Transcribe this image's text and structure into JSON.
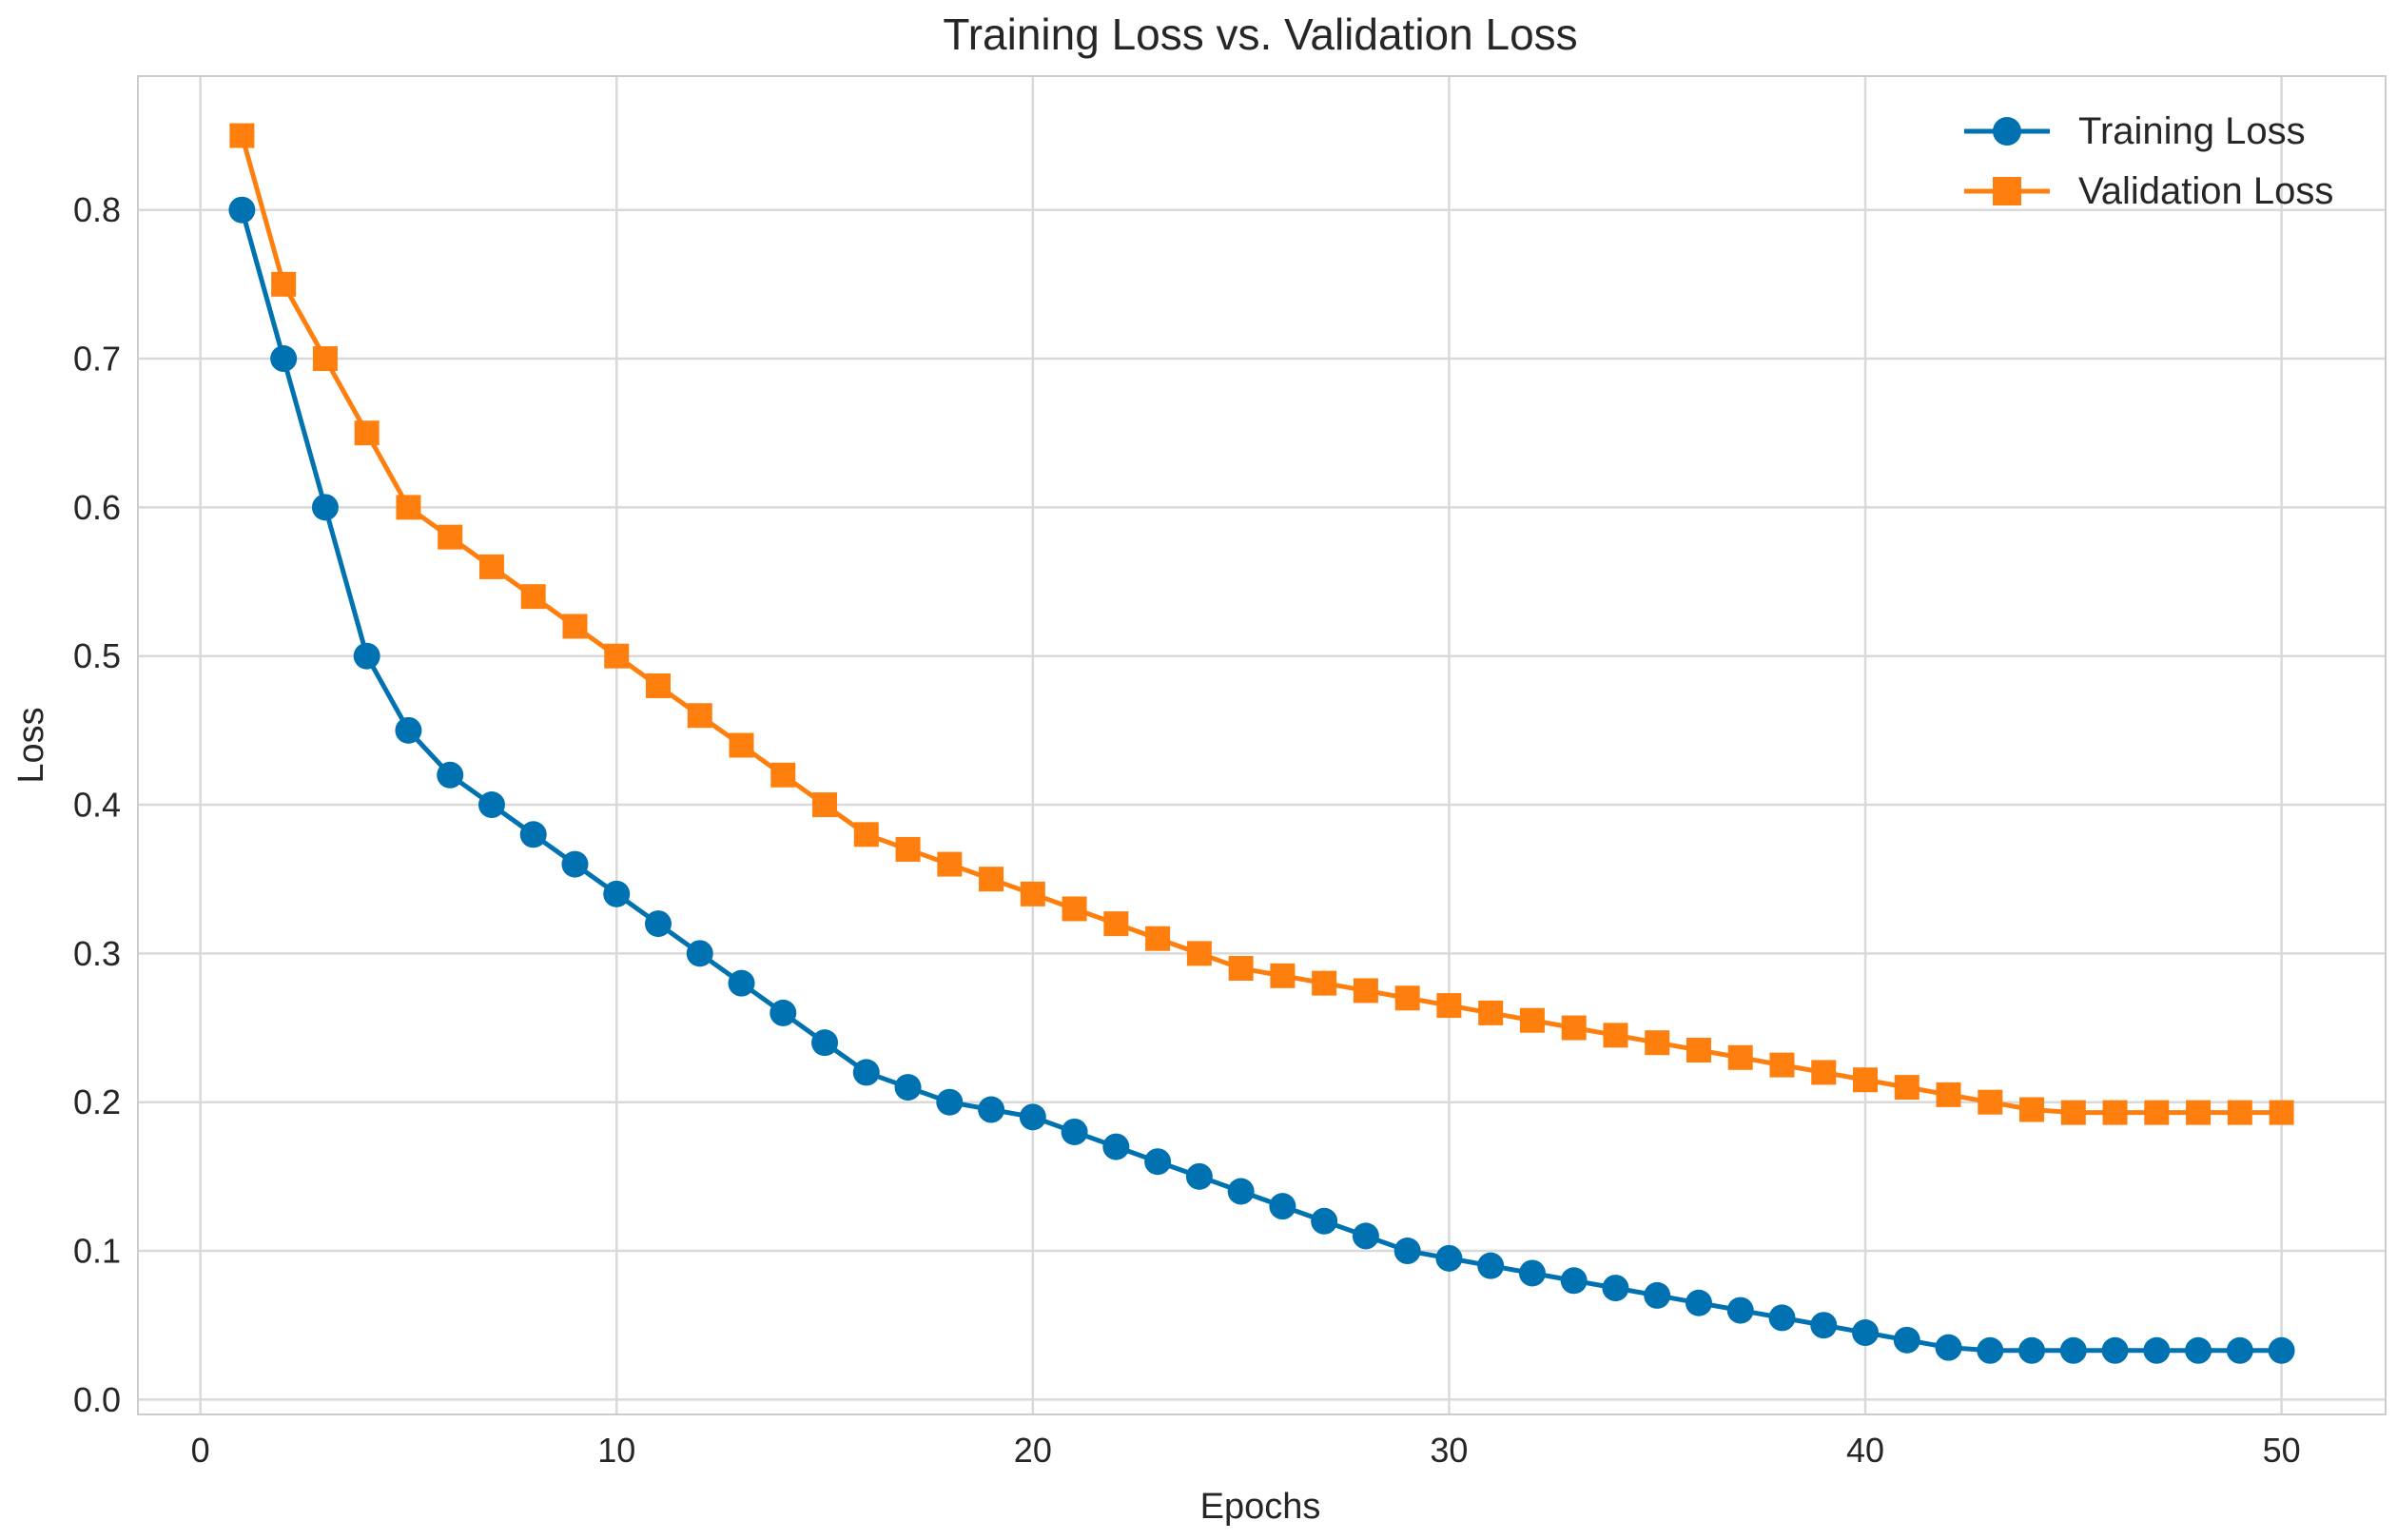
{
  "chart_data": {
    "type": "line",
    "title": "Training Loss vs. Validation Loss",
    "xlabel": "Epochs",
    "ylabel": "Loss",
    "xlim": [
      -1.5,
      52.5
    ],
    "ylim": [
      -0.01,
      0.89
    ],
    "xticks": [
      0,
      10,
      20,
      30,
      40,
      50
    ],
    "yticks": [
      0.0,
      0.1,
      0.2,
      0.3,
      0.4,
      0.5,
      0.6,
      0.7,
      0.8
    ],
    "xtick_labels": [
      "0",
      "10",
      "20",
      "30",
      "40",
      "50"
    ],
    "ytick_labels": [
      "0.0",
      "0.1",
      "0.2",
      "0.3",
      "0.4",
      "0.5",
      "0.6",
      "0.7",
      "0.8"
    ],
    "grid": true,
    "legend_position": "top-right",
    "x": [
      1,
      2,
      3,
      4,
      5,
      6,
      7,
      8,
      9,
      10,
      11,
      12,
      13,
      14,
      15,
      16,
      17,
      18,
      19,
      20,
      21,
      22,
      23,
      24,
      25,
      26,
      27,
      28,
      29,
      30,
      31,
      32,
      33,
      34,
      35,
      36,
      37,
      38,
      39,
      40,
      41,
      42,
      43,
      44,
      45,
      46,
      47,
      48,
      49,
      50
    ],
    "series": [
      {
        "name": "Training Loss",
        "color": "#0072b2",
        "marker": "circle",
        "values": [
          0.8,
          0.7,
          0.6,
          0.5,
          0.45,
          0.42,
          0.4,
          0.38,
          0.36,
          0.34,
          0.32,
          0.3,
          0.28,
          0.26,
          0.24,
          0.22,
          0.21,
          0.2,
          0.195,
          0.19,
          0.18,
          0.17,
          0.16,
          0.15,
          0.14,
          0.13,
          0.12,
          0.11,
          0.1,
          0.095,
          0.09,
          0.085,
          0.08,
          0.075,
          0.07,
          0.065,
          0.06,
          0.055,
          0.05,
          0.045,
          0.04,
          0.035,
          0.033,
          0.033,
          0.033,
          0.033,
          0.033,
          0.033,
          0.033,
          0.033
        ]
      },
      {
        "name": "Validation Loss",
        "color": "#ff7f0e",
        "marker": "square",
        "values": [
          0.85,
          0.75,
          0.7,
          0.65,
          0.6,
          0.58,
          0.56,
          0.54,
          0.52,
          0.5,
          0.48,
          0.46,
          0.44,
          0.42,
          0.4,
          0.38,
          0.37,
          0.36,
          0.35,
          0.34,
          0.33,
          0.32,
          0.31,
          0.3,
          0.29,
          0.285,
          0.28,
          0.275,
          0.27,
          0.265,
          0.26,
          0.255,
          0.25,
          0.245,
          0.24,
          0.235,
          0.23,
          0.225,
          0.22,
          0.215,
          0.21,
          0.205,
          0.2,
          0.195,
          0.193,
          0.193,
          0.193,
          0.193,
          0.193,
          0.193
        ]
      }
    ]
  }
}
